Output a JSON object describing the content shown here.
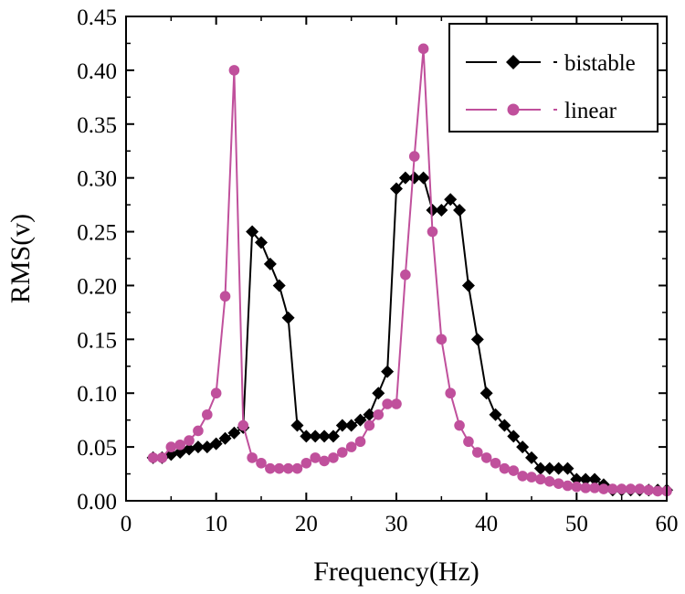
{
  "chart_data": {
    "type": "line",
    "title": "",
    "xlabel": "Frequency(Hz)",
    "ylabel": "RMS(v)",
    "xlim": [
      0,
      60
    ],
    "ylim": [
      0,
      0.45
    ],
    "xticks": [
      0,
      10,
      20,
      30,
      40,
      50,
      60
    ],
    "yticks": [
      0.0,
      0.05,
      0.1,
      0.15,
      0.2,
      0.25,
      0.3,
      0.35,
      0.4,
      0.45
    ],
    "xtick_labels": [
      "0",
      "10",
      "20",
      "30",
      "40",
      "50",
      "60"
    ],
    "ytick_labels": [
      "0.00",
      "0.05",
      "0.10",
      "0.15",
      "0.20",
      "0.25",
      "0.30",
      "0.35",
      "0.40",
      "0.45"
    ],
    "grid": false,
    "legend_position": "top-right",
    "series": [
      {
        "name": "bistable",
        "color": "#000000",
        "marker": "diamond",
        "x": [
          3,
          4,
          5,
          6,
          7,
          8,
          9,
          10,
          11,
          12,
          13,
          14,
          15,
          16,
          17,
          18,
          19,
          20,
          21,
          22,
          23,
          24,
          25,
          26,
          27,
          28,
          29,
          30,
          31,
          32,
          33,
          34,
          35,
          36,
          37,
          38,
          39,
          40,
          41,
          42,
          43,
          44,
          45,
          46,
          47,
          48,
          49,
          50,
          51,
          52,
          53,
          54,
          55,
          56,
          57,
          58,
          59,
          60
        ],
        "y": [
          0.04,
          0.04,
          0.043,
          0.045,
          0.048,
          0.05,
          0.05,
          0.053,
          0.058,
          0.063,
          0.068,
          0.25,
          0.24,
          0.22,
          0.2,
          0.17,
          0.07,
          0.06,
          0.06,
          0.06,
          0.06,
          0.07,
          0.07,
          0.075,
          0.08,
          0.1,
          0.12,
          0.29,
          0.3,
          0.3,
          0.3,
          0.27,
          0.27,
          0.28,
          0.27,
          0.2,
          0.15,
          0.1,
          0.08,
          0.07,
          0.06,
          0.05,
          0.04,
          0.03,
          0.03,
          0.03,
          0.03,
          0.02,
          0.02,
          0.02,
          0.015,
          0.01,
          0.01,
          0.01,
          0.01,
          0.01,
          0.01,
          0.01
        ]
      },
      {
        "name": "linear",
        "color": "#c0509c",
        "marker": "circle",
        "x": [
          3,
          4,
          5,
          6,
          7,
          8,
          9,
          10,
          11,
          12,
          13,
          14,
          15,
          16,
          17,
          18,
          19,
          20,
          21,
          22,
          23,
          24,
          25,
          26,
          27,
          28,
          29,
          30,
          31,
          32,
          33,
          34,
          35,
          36,
          37,
          38,
          39,
          40,
          41,
          42,
          43,
          44,
          45,
          46,
          47,
          48,
          49,
          50,
          51,
          52,
          53,
          54,
          55,
          56,
          57,
          58,
          59,
          60
        ],
        "y": [
          0.04,
          0.04,
          0.05,
          0.052,
          0.056,
          0.065,
          0.08,
          0.1,
          0.19,
          0.4,
          0.07,
          0.04,
          0.035,
          0.03,
          0.03,
          0.03,
          0.03,
          0.035,
          0.04,
          0.037,
          0.04,
          0.045,
          0.05,
          0.055,
          0.07,
          0.08,
          0.09,
          0.09,
          0.21,
          0.32,
          0.42,
          0.25,
          0.15,
          0.1,
          0.07,
          0.055,
          0.045,
          0.04,
          0.035,
          0.03,
          0.028,
          0.023,
          0.022,
          0.02,
          0.018,
          0.016,
          0.014,
          0.013,
          0.012,
          0.012,
          0.011,
          0.011,
          0.011,
          0.011,
          0.011,
          0.01,
          0.009,
          0.009
        ]
      }
    ]
  }
}
